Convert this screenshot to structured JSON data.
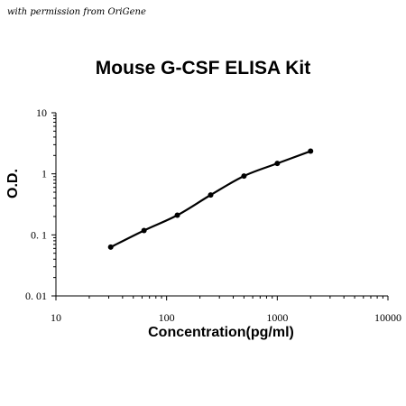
{
  "watermark": "with permission from OriGene",
  "chart_data": {
    "type": "line",
    "title": "Mouse G-CSF ELISA Kit",
    "xlabel": "Concentration(pg/ml)",
    "ylabel": "O.D.",
    "xscale": "log",
    "yscale": "log",
    "xlim": [
      10,
      10000
    ],
    "ylim": [
      0.01,
      10
    ],
    "x_ticks": [
      "10",
      "100",
      "1000",
      "10000"
    ],
    "y_ticks": [
      "10",
      "1",
      "0. 1",
      "0. 01"
    ],
    "grid": false,
    "legend": "none",
    "series": [
      {
        "x": [
          31.25,
          62.5,
          125,
          250,
          500,
          1000,
          2000
        ],
        "y": [
          0.063,
          0.118,
          0.21,
          0.45,
          0.92,
          1.48,
          2.35
        ]
      }
    ],
    "line_color": "#000000"
  }
}
